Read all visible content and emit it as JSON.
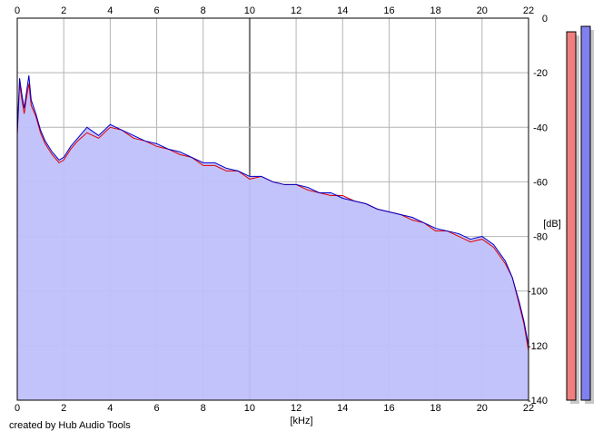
{
  "credit": "created by Hub Audio Tools",
  "chart_data": {
    "type": "area",
    "xlabel": "[kHz]",
    "ylabel": "[dB]",
    "xlim": [
      0,
      22
    ],
    "ylim": [
      -140,
      0
    ],
    "x_ticks": [
      0,
      2,
      4,
      6,
      8,
      10,
      12,
      14,
      16,
      18,
      20,
      22
    ],
    "y_ticks": [
      0,
      -20,
      -40,
      -60,
      -80,
      -100,
      -120,
      -140
    ],
    "grid": true,
    "series": [
      {
        "color": "#e00000",
        "x": [
          0,
          0.1,
          0.2,
          0.3,
          0.4,
          0.5,
          0.6,
          0.8,
          1.0,
          1.2,
          1.5,
          1.8,
          2.0,
          2.3,
          2.6,
          3.0,
          3.5,
          4.0,
          4.5,
          5.0,
          5.5,
          6.0,
          6.5,
          7.0,
          7.5,
          8.0,
          8.5,
          9.0,
          9.5,
          10.0,
          10.5,
          11.0,
          11.5,
          12.0,
          12.5,
          13.0,
          13.5,
          14.0,
          14.5,
          15.0,
          15.5,
          16.0,
          16.5,
          17.0,
          17.5,
          18.0,
          18.5,
          19.0,
          19.5,
          20.0,
          20.5,
          21.0,
          21.3,
          21.6,
          21.8,
          22.0
        ],
        "y": [
          -43,
          -24,
          -30,
          -35,
          -29,
          -24,
          -32,
          -36,
          -42,
          -46,
          -50,
          -53,
          -52,
          -48,
          -45,
          -42,
          -44,
          -40,
          -41,
          -44,
          -45,
          -47,
          -48,
          -50,
          -51,
          -54,
          -54,
          -56,
          -56,
          -59,
          -58,
          -60,
          -61,
          -61,
          -63,
          -64,
          -65,
          -65,
          -67,
          -68,
          -70,
          -71,
          -72,
          -74,
          -75,
          -78,
          -78,
          -80,
          -82,
          -81,
          -84,
          -90,
          -95,
          -105,
          -112,
          -122
        ]
      },
      {
        "color": "#0000c8",
        "x": [
          0,
          0.1,
          0.2,
          0.3,
          0.4,
          0.5,
          0.6,
          0.8,
          1.0,
          1.2,
          1.5,
          1.8,
          2.0,
          2.3,
          2.6,
          3.0,
          3.5,
          4.0,
          4.5,
          5.0,
          5.5,
          6.0,
          6.5,
          7.0,
          7.5,
          8.0,
          8.5,
          9.0,
          9.5,
          10.0,
          10.5,
          11.0,
          11.5,
          12.0,
          12.5,
          13.0,
          13.5,
          14.0,
          14.5,
          15.0,
          15.5,
          16.0,
          16.5,
          17.0,
          17.5,
          18.0,
          18.5,
          19.0,
          19.5,
          20.0,
          20.5,
          21.0,
          21.3,
          21.6,
          21.8,
          22.0
        ],
        "y": [
          -42,
          -22,
          -28,
          -33,
          -27,
          -21,
          -30,
          -35,
          -41,
          -45,
          -49,
          -52,
          -51,
          -47,
          -44,
          -40,
          -43,
          -39,
          -41,
          -43,
          -45,
          -46,
          -48,
          -49,
          -51,
          -53,
          -53,
          -55,
          -56,
          -58,
          -58,
          -60,
          -61,
          -61,
          -62,
          -64,
          -64,
          -66,
          -67,
          -68,
          -70,
          -71,
          -72,
          -73,
          -75,
          -77,
          -78,
          -79,
          -81,
          -80,
          -83,
          -89,
          -95,
          -104,
          -111,
          -120
        ]
      }
    ],
    "level_meters": [
      {
        "color": "#ef7f7f",
        "value_db": -5
      },
      {
        "color": "#8080ee",
        "value_db": -3
      }
    ]
  }
}
